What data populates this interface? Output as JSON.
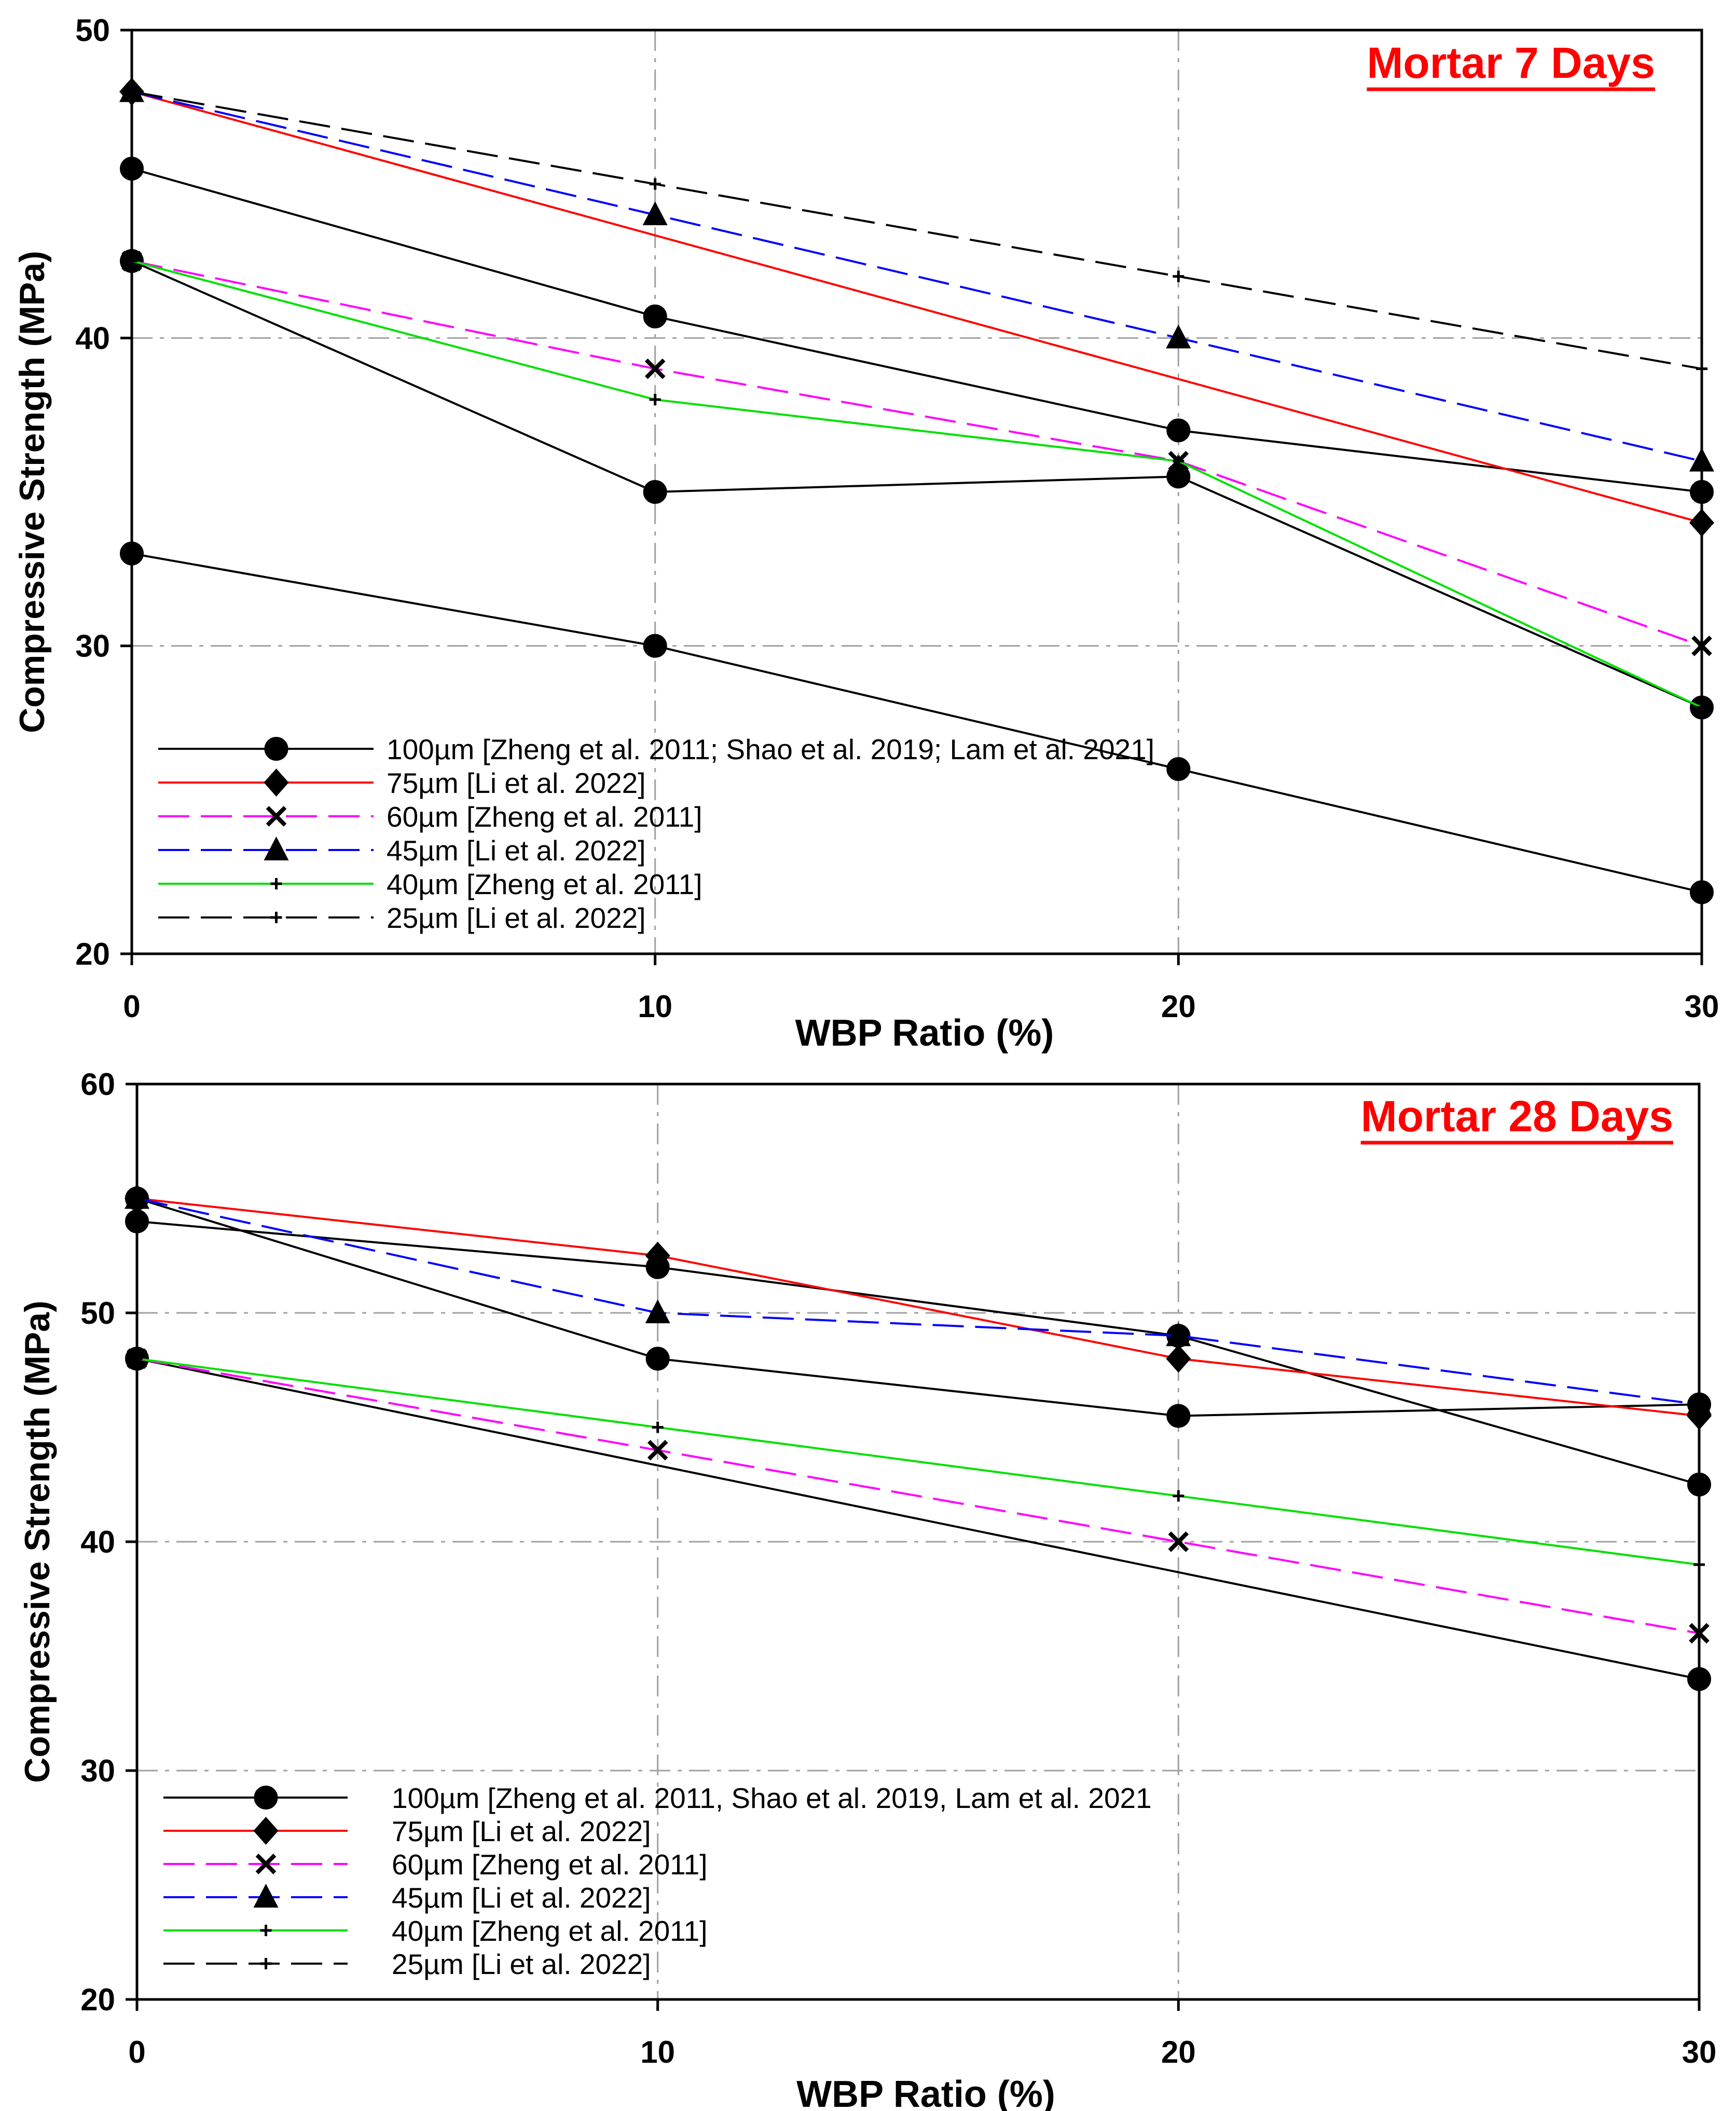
{
  "figure": {
    "colors": {
      "black": "#000000",
      "red": "#ff0000",
      "magenta": "#ff00ff",
      "blue": "#0000ff",
      "green": "#00e000",
      "grid": "#a0a0a0",
      "title": "#ff0000"
    }
  },
  "chart_data": [
    {
      "type": "line",
      "title": "Mortar 7 Days",
      "xlabel": "WBP Ratio (%)",
      "ylabel": "Compressive Strength (MPa)",
      "xlim": [
        0,
        30
      ],
      "ylim": [
        20,
        50
      ],
      "xticks": [
        "0",
        "10",
        "20",
        "30"
      ],
      "yticks": [
        "20",
        "30",
        "40",
        "50"
      ],
      "grid": true,
      "legend_position": "bottom-left",
      "legend": [
        {
          "label": "100µm [Zheng et al. 2011; Shao et al. 2019; Lam et al. 2021]",
          "color": "black",
          "dash": "solid",
          "marker": "circle"
        },
        {
          "label": "75µm [Li et al. 2022]",
          "color": "red",
          "dash": "solid",
          "marker": "diamond"
        },
        {
          "label": "60µm [Zheng et al. 2011]",
          "color": "magenta",
          "dash": "dashed",
          "marker": "x"
        },
        {
          "label": "45µm [Li et al. 2022]",
          "color": "blue",
          "dash": "dashed",
          "marker": "triangle"
        },
        {
          "label": "40µm [Zheng et al. 2011]",
          "color": "green",
          "dash": "solid",
          "marker": "plus"
        },
        {
          "label": "25µm [Li et al. 2022]",
          "color": "black",
          "dash": "dashed",
          "marker": "plus"
        }
      ],
      "series": [
        {
          "name": "100µm (Zheng et al. 2011)",
          "color": "black",
          "dash": "solid",
          "marker": "circle",
          "x": [
            0,
            10,
            20,
            30
          ],
          "y": [
            42.5,
            35.0,
            35.5,
            28.0
          ]
        },
        {
          "name": "100µm (Shao et al. 2019)",
          "color": "black",
          "dash": "solid",
          "marker": "circle",
          "x": [
            0,
            10,
            20,
            30
          ],
          "y": [
            33.0,
            30.0,
            26.0,
            22.0
          ]
        },
        {
          "name": "100µm (Lam et al. 2021)",
          "color": "black",
          "dash": "solid",
          "marker": "circle",
          "x": [
            0,
            10,
            20,
            30
          ],
          "y": [
            45.5,
            40.7,
            37.0,
            35.0
          ]
        },
        {
          "name": "75µm",
          "color": "red",
          "dash": "solid",
          "marker": "diamond",
          "x": [
            0,
            30
          ],
          "y": [
            48.0,
            34.0
          ]
        },
        {
          "name": "60µm",
          "color": "magenta",
          "dash": "dashed",
          "marker": "x",
          "x": [
            0,
            10,
            20,
            30
          ],
          "y": [
            42.5,
            39.0,
            36.0,
            30.0
          ]
        },
        {
          "name": "45µm",
          "color": "blue",
          "dash": "dashed",
          "marker": "triangle",
          "x": [
            0,
            10,
            20,
            30
          ],
          "y": [
            48.0,
            44.0,
            40.0,
            36.0
          ]
        },
        {
          "name": "40µm",
          "color": "green",
          "dash": "solid",
          "marker": "plus",
          "x": [
            0,
            10,
            20,
            30
          ],
          "y": [
            42.5,
            38.0,
            36.0,
            28.0
          ]
        },
        {
          "name": "25µm",
          "color": "black",
          "dash": "dashed",
          "marker": "plus",
          "x": [
            0,
            10,
            20,
            30
          ],
          "y": [
            48.0,
            45.0,
            42.0,
            39.0
          ]
        }
      ]
    },
    {
      "type": "line",
      "title": "Mortar 28 Days",
      "xlabel": "WBP Ratio (%)",
      "ylabel": "Compressive Strength (MPa)",
      "xlim": [
        0,
        30
      ],
      "ylim": [
        20,
        60
      ],
      "xticks": [
        "0",
        "10",
        "20",
        "30"
      ],
      "yticks": [
        "20",
        "30",
        "40",
        "50",
        "60"
      ],
      "grid": true,
      "legend_position": "bottom-left",
      "legend": [
        {
          "label": "100µm [Zheng et al. 2011, Shao et al. 2019, Lam et al. 2021",
          "color": "black",
          "dash": "solid",
          "marker": "circle"
        },
        {
          "label": "75µm [Li et al. 2022]",
          "color": "red",
          "dash": "solid",
          "marker": "diamond"
        },
        {
          "label": "60µm [Zheng et al. 2011]",
          "color": "magenta",
          "dash": "dashed",
          "marker": "x"
        },
        {
          "label": "45µm [Li et al. 2022]",
          "color": "blue",
          "dash": "dashed",
          "marker": "triangle"
        },
        {
          "label": "40µm [Zheng et al. 2011]",
          "color": "green",
          "dash": "solid",
          "marker": "plus"
        },
        {
          "label": "25µm [Li et al. 2022]",
          "color": "black",
          "dash": "dashed",
          "marker": "plus"
        }
      ],
      "series": [
        {
          "name": "100µm (Zheng et al. 2011)",
          "color": "black",
          "dash": "solid",
          "marker": "circle",
          "x": [
            0,
            10,
            20,
            30
          ],
          "y": [
            55.0,
            48.0,
            45.5,
            46.0
          ]
        },
        {
          "name": "100µm (Shao et al. 2019)",
          "color": "black",
          "dash": "solid",
          "marker": "circle",
          "x": [
            0,
            10,
            20,
            30
          ],
          "y": [
            54.0,
            52.0,
            49.0,
            42.5
          ]
        },
        {
          "name": "100µm (Lam et al. 2021)",
          "color": "black",
          "dash": "solid",
          "marker": "circle",
          "x": [
            0,
            30
          ],
          "y": [
            48.0,
            34.0
          ]
        },
        {
          "name": "75µm",
          "color": "red",
          "dash": "solid",
          "marker": "diamond",
          "x": [
            0,
            10,
            20,
            30
          ],
          "y": [
            55.0,
            52.5,
            48.0,
            45.5
          ]
        },
        {
          "name": "60µm",
          "color": "magenta",
          "dash": "dashed",
          "marker": "x",
          "x": [
            0,
            10,
            20,
            30
          ],
          "y": [
            48.0,
            44.0,
            40.0,
            36.0
          ]
        },
        {
          "name": "45µm",
          "color": "blue",
          "dash": "dashed",
          "marker": "triangle",
          "x": [
            0,
            10,
            20,
            30
          ],
          "y": [
            55.0,
            50.0,
            49.0,
            46.0
          ]
        },
        {
          "name": "40µm",
          "color": "green",
          "dash": "solid",
          "marker": "plus",
          "x": [
            0,
            10,
            20,
            30
          ],
          "y": [
            48.0,
            45.0,
            42.0,
            39.0
          ]
        }
      ]
    }
  ]
}
